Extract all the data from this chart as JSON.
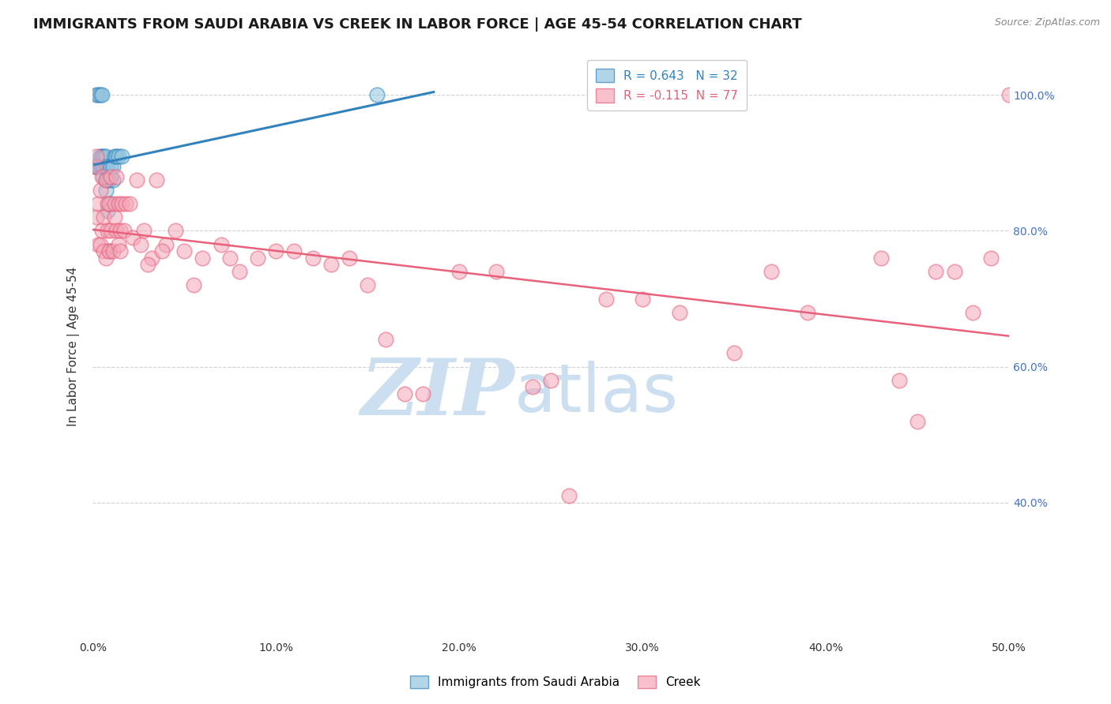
{
  "title": "IMMIGRANTS FROM SAUDI ARABIA VS CREEK IN LABOR FORCE | AGE 45-54 CORRELATION CHART",
  "source": "Source: ZipAtlas.com",
  "ylabel": "In Labor Force | Age 45-54",
  "xlim": [
    0.0,
    0.5
  ],
  "ylim": [
    0.2,
    1.06
  ],
  "xticks": [
    0.0,
    0.1,
    0.2,
    0.3,
    0.4,
    0.5
  ],
  "yticks": [
    0.4,
    0.6,
    0.8,
    1.0
  ],
  "ytick_labels": [
    "40.0%",
    "60.0%",
    "80.0%",
    "100.0%"
  ],
  "xtick_labels": [
    "0.0%",
    "10.0%",
    "20.0%",
    "30.0%",
    "40.0%",
    "50.0%"
  ],
  "blue_R": 0.643,
  "blue_N": 32,
  "pink_R": -0.115,
  "pink_N": 77,
  "blue_color": "#92c5de",
  "pink_color": "#f4a6b8",
  "blue_line_color": "#3182bd",
  "pink_line_color": "#e8607a",
  "legend_label_blue": "Immigrants from Saudi Arabia",
  "legend_label_pink": "Creek",
  "blue_points_x": [
    0.001,
    0.002,
    0.002,
    0.003,
    0.003,
    0.004,
    0.004,
    0.004,
    0.005,
    0.005,
    0.005,
    0.006,
    0.006,
    0.006,
    0.007,
    0.007,
    0.007,
    0.007,
    0.008,
    0.008,
    0.008,
    0.009,
    0.009,
    0.01,
    0.01,
    0.011,
    0.011,
    0.012,
    0.013,
    0.014,
    0.016,
    0.155
  ],
  "blue_points_y": [
    0.895,
    0.895,
    1.0,
    0.895,
    1.0,
    0.895,
    0.91,
    1.0,
    0.895,
    0.91,
    1.0,
    0.88,
    0.895,
    0.91,
    0.86,
    0.875,
    0.895,
    0.91,
    0.83,
    0.875,
    0.895,
    0.77,
    0.875,
    0.84,
    0.895,
    0.875,
    0.895,
    0.91,
    0.91,
    0.91,
    0.91,
    1.0
  ],
  "pink_points_x": [
    0.001,
    0.002,
    0.002,
    0.003,
    0.003,
    0.004,
    0.004,
    0.005,
    0.005,
    0.006,
    0.006,
    0.007,
    0.007,
    0.008,
    0.008,
    0.009,
    0.009,
    0.01,
    0.01,
    0.011,
    0.012,
    0.012,
    0.013,
    0.013,
    0.014,
    0.014,
    0.015,
    0.015,
    0.016,
    0.017,
    0.018,
    0.02,
    0.022,
    0.024,
    0.026,
    0.028,
    0.032,
    0.035,
    0.04,
    0.045,
    0.05,
    0.06,
    0.07,
    0.08,
    0.09,
    0.1,
    0.12,
    0.14,
    0.16,
    0.17,
    0.2,
    0.22,
    0.25,
    0.26,
    0.3,
    0.32,
    0.35,
    0.37,
    0.39,
    0.43,
    0.44,
    0.45,
    0.46,
    0.47,
    0.48,
    0.49,
    0.5,
    0.03,
    0.038,
    0.055,
    0.075,
    0.11,
    0.13,
    0.15,
    0.18,
    0.24,
    0.28
  ],
  "pink_points_y": [
    0.895,
    0.82,
    0.91,
    0.84,
    0.78,
    0.86,
    0.78,
    0.8,
    0.88,
    0.82,
    0.77,
    0.76,
    0.875,
    0.8,
    0.84,
    0.84,
    0.77,
    0.8,
    0.88,
    0.77,
    0.82,
    0.84,
    0.8,
    0.88,
    0.84,
    0.78,
    0.8,
    0.77,
    0.84,
    0.8,
    0.84,
    0.84,
    0.79,
    0.875,
    0.78,
    0.8,
    0.76,
    0.875,
    0.78,
    0.8,
    0.77,
    0.76,
    0.78,
    0.74,
    0.76,
    0.77,
    0.76,
    0.76,
    0.64,
    0.56,
    0.74,
    0.74,
    0.58,
    0.41,
    0.7,
    0.68,
    0.62,
    0.74,
    0.68,
    0.76,
    0.58,
    0.52,
    0.74,
    0.74,
    0.68,
    0.76,
    1.0,
    0.75,
    0.77,
    0.72,
    0.76,
    0.77,
    0.75,
    0.72,
    0.56,
    0.57,
    0.7
  ],
  "watermark_zip": "ZIP",
  "watermark_atlas": "atlas",
  "watermark_color": "#ccdff0",
  "background_color": "#ffffff",
  "grid_color": "#d0d0d0",
  "right_axis_color": "#4472c4",
  "title_fontsize": 13,
  "axis_label_fontsize": 11,
  "tick_fontsize": 10,
  "legend_fontsize": 11
}
